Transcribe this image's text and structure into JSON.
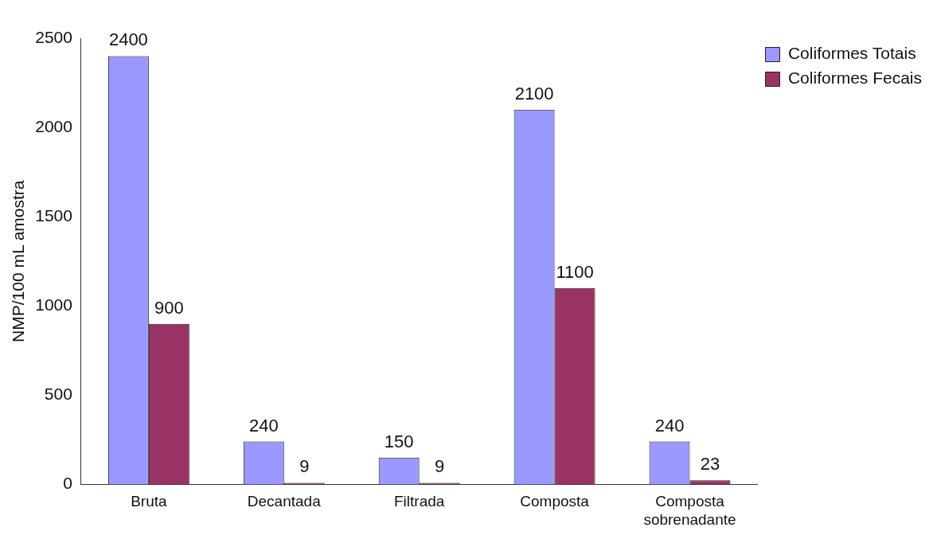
{
  "chart_data": {
    "type": "bar",
    "ylabel": "NMP/100 mL amostra",
    "categories": [
      "Bruta",
      "Decantada",
      "Filtrada",
      "Composta",
      "Composta sobrenadante"
    ],
    "series": [
      {
        "name": "Coliformes Totais",
        "color": "#9999ff",
        "values": [
          2400,
          240,
          150,
          2100,
          240
        ]
      },
      {
        "name": "Coliformes Fecais",
        "color": "#993366",
        "values": [
          900,
          9,
          9,
          1100,
          23
        ]
      }
    ],
    "ylim": [
      0,
      2500
    ],
    "yticks": [
      0,
      500,
      1000,
      1500,
      2000,
      2500
    ],
    "grid": false,
    "legend": "top right",
    "data_labels": true
  }
}
